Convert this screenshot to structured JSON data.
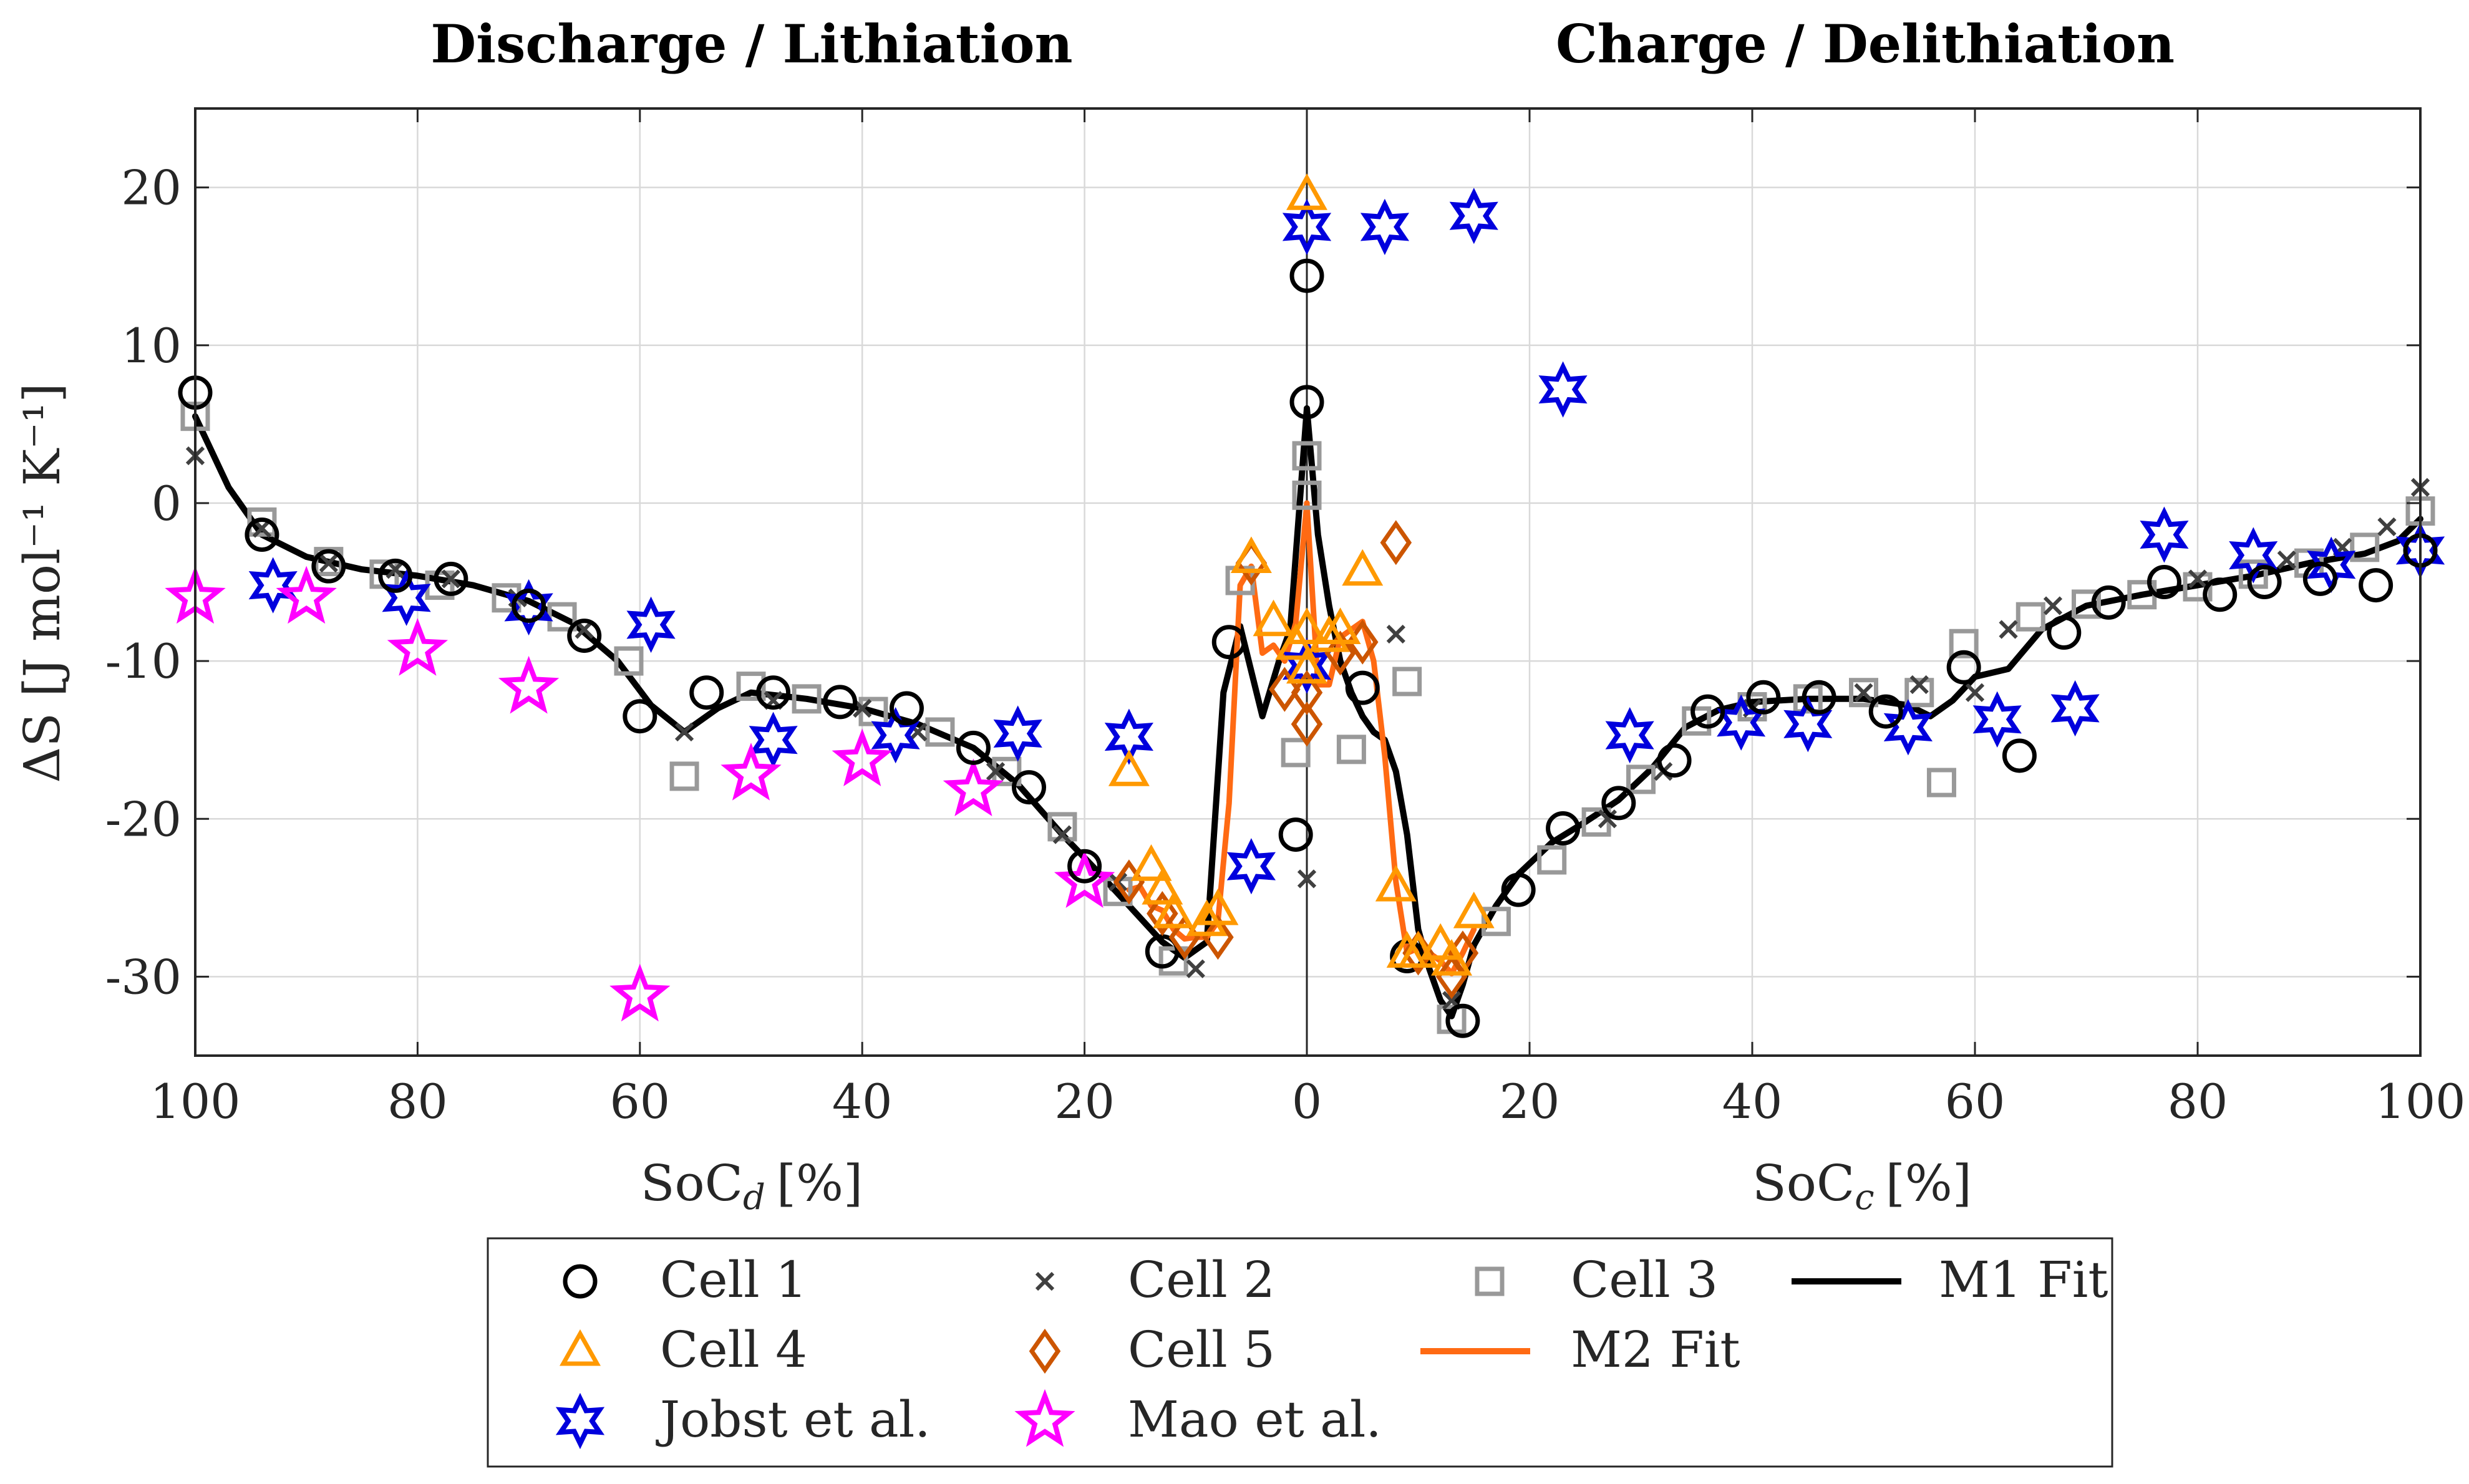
{
  "chart_data": {
    "type": "scatter",
    "titles": {
      "left": "Discharge / Lithiation",
      "right": "Charge / Delithiation"
    },
    "ylabel": "ΔS [J mol⁻¹ K⁻¹]",
    "xlabel_left": "SoC_d [%]",
    "xlabel_right": "SoC_c [%]",
    "xlabel_left_main": "SoC",
    "xlabel_left_sub": "d",
    "xlabel_right_main": "SoC",
    "xlabel_right_sub": "c",
    "xlabel_unit": "[%]",
    "ylim": [
      -35,
      25
    ],
    "yticks": [
      -30,
      -20,
      -10,
      0,
      10,
      20
    ],
    "ytick_labels": [
      "-30",
      "-20",
      "-10",
      "0",
      "10",
      "20"
    ],
    "xticks_left": [
      100,
      80,
      60,
      40,
      20,
      0
    ],
    "xtick_labels_left": [
      "100",
      "80",
      "60",
      "40",
      "20",
      "0"
    ],
    "xticks_right": [
      20,
      40,
      60,
      80,
      100
    ],
    "xtick_labels_right": [
      "20",
      "40",
      "60",
      "80",
      "100"
    ],
    "grid": true,
    "legend_position": "bottom",
    "colors": {
      "cell1": "#000000",
      "cell2": "#404040",
      "cell3": "#999999",
      "cell4": "#ff9900",
      "cell5": "#cc5500",
      "jobst": "#0000dd",
      "mao": "#ff00ff",
      "m1": "#000000",
      "m2": "#ff6a13"
    },
    "series": [
      {
        "id": "cell1",
        "name": "Cell 1",
        "marker": "circle",
        "discharge": [
          [
            100,
            7
          ],
          [
            94,
            -2
          ],
          [
            88,
            -4
          ],
          [
            82,
            -4.6
          ],
          [
            77,
            -4.8
          ],
          [
            70,
            -6.5
          ],
          [
            65,
            -8.4
          ],
          [
            60,
            -13.5
          ],
          [
            54,
            -12
          ],
          [
            48,
            -12
          ],
          [
            42,
            -12.6
          ],
          [
            36,
            -13
          ],
          [
            30,
            -15.5
          ],
          [
            25,
            -18
          ],
          [
            20,
            -23
          ],
          [
            13,
            -28.4
          ],
          [
            7,
            -8.8
          ],
          [
            1,
            -21
          ],
          [
            0,
            14.4
          ],
          [
            0,
            6.4
          ]
        ],
        "charge": [
          [
            5,
            -11.7
          ],
          [
            9,
            -28.7
          ],
          [
            14,
            -32.8
          ],
          [
            19,
            -24.5
          ],
          [
            23,
            -20.6
          ],
          [
            28,
            -19
          ],
          [
            33,
            -16.3
          ],
          [
            36,
            -13.2
          ],
          [
            41,
            -12.3
          ],
          [
            46,
            -12.3
          ],
          [
            52,
            -13.2
          ],
          [
            59,
            -10.4
          ],
          [
            64,
            -16
          ],
          [
            68,
            -8.2
          ],
          [
            72,
            -6.3
          ],
          [
            77,
            -5
          ],
          [
            82,
            -5.8
          ],
          [
            86,
            -5
          ],
          [
            91,
            -4.8
          ],
          [
            96,
            -5.2
          ],
          [
            100,
            -3
          ]
        ]
      },
      {
        "id": "cell2",
        "name": "Cell 2",
        "marker": "x",
        "discharge": [
          [
            100,
            3
          ],
          [
            94,
            -1.6
          ],
          [
            88,
            -3.8
          ],
          [
            82,
            -4.2
          ],
          [
            77,
            -4.8
          ],
          [
            71,
            -6
          ],
          [
            65,
            -8
          ],
          [
            56,
            -14.5
          ],
          [
            48,
            -12.5
          ],
          [
            40,
            -13
          ],
          [
            35,
            -14.5
          ],
          [
            28,
            -17
          ],
          [
            22,
            -21
          ],
          [
            17,
            -24
          ],
          [
            10,
            -29.5
          ],
          [
            0,
            -23.8
          ]
        ],
        "charge": [
          [
            8,
            -8.3
          ],
          [
            13,
            -31.5
          ],
          [
            27,
            -20
          ],
          [
            32,
            -17
          ],
          [
            40,
            -13
          ],
          [
            50,
            -12
          ],
          [
            55,
            -11.5
          ],
          [
            60,
            -12
          ],
          [
            63,
            -8
          ],
          [
            67,
            -6.5
          ],
          [
            80,
            -4.8
          ],
          [
            88,
            -3.6
          ],
          [
            93,
            -2.8
          ],
          [
            97,
            -1.5
          ],
          [
            100,
            1
          ]
        ]
      },
      {
        "id": "cell3",
        "name": "Cell 3",
        "marker": "square",
        "discharge": [
          [
            100,
            5.5
          ],
          [
            94,
            -1.2
          ],
          [
            88,
            -3.7
          ],
          [
            83,
            -4.5
          ],
          [
            78,
            -5.2
          ],
          [
            72,
            -6
          ],
          [
            67,
            -7.2
          ],
          [
            61,
            -10
          ],
          [
            56,
            -17.3
          ],
          [
            50,
            -11.6
          ],
          [
            45,
            -12.4
          ],
          [
            39,
            -13.2
          ],
          [
            33,
            -14.5
          ],
          [
            27,
            -17
          ],
          [
            22,
            -20.5
          ],
          [
            17,
            -24.6
          ],
          [
            12,
            -29
          ],
          [
            6,
            -4.9
          ],
          [
            0,
            3
          ],
          [
            0,
            0.5
          ],
          [
            1,
            -15.8
          ]
        ],
        "charge": [
          [
            4,
            -15.6
          ],
          [
            9,
            -11.3
          ],
          [
            13,
            -32.7
          ],
          [
            17,
            -26.5
          ],
          [
            22,
            -22.6
          ],
          [
            26,
            -20.2
          ],
          [
            30,
            -17.5
          ],
          [
            35,
            -13.8
          ],
          [
            40,
            -12.9
          ],
          [
            45,
            -12.4
          ],
          [
            50,
            -12
          ],
          [
            55,
            -12
          ],
          [
            57,
            -17.7
          ],
          [
            59,
            -8.9
          ],
          [
            65,
            -7.2
          ],
          [
            70,
            -6.4
          ],
          [
            75,
            -5.8
          ],
          [
            80,
            -5.3
          ],
          [
            85,
            -4.5
          ],
          [
            90,
            -3.8
          ],
          [
            95,
            -2.8
          ],
          [
            100,
            -0.5
          ]
        ]
      },
      {
        "id": "cell4",
        "name": "Cell 4",
        "marker": "triangle",
        "discharge": [
          [
            16,
            -17
          ],
          [
            14,
            -23
          ],
          [
            13,
            -24.5
          ],
          [
            12,
            -26
          ],
          [
            9,
            -26.5
          ],
          [
            8,
            -25.8
          ],
          [
            5,
            -3.5
          ],
          [
            3,
            -7.5
          ],
          [
            1,
            -9
          ],
          [
            0,
            19.5
          ],
          [
            0,
            -10.5
          ],
          [
            0,
            -8
          ]
        ],
        "charge": [
          [
            2,
            -8.5
          ],
          [
            3,
            -8
          ],
          [
            5,
            -4.3
          ],
          [
            8,
            -24.3
          ],
          [
            9,
            -28.5
          ],
          [
            10,
            -28.5
          ],
          [
            12,
            -28
          ],
          [
            13,
            -29
          ],
          [
            15,
            -26
          ]
        ]
      },
      {
        "id": "cell5",
        "name": "Cell 5",
        "marker": "diamond",
        "discharge": [
          [
            16,
            -24
          ],
          [
            13,
            -26
          ],
          [
            11,
            -27.5
          ],
          [
            8,
            -27.5
          ],
          [
            5,
            -3.8
          ],
          [
            2,
            -11.8
          ],
          [
            0,
            -14
          ],
          [
            0,
            -12
          ]
        ],
        "charge": [
          [
            3,
            -9.5
          ],
          [
            5,
            -8.8
          ],
          [
            8,
            -2.5
          ],
          [
            10,
            -28.5
          ],
          [
            13,
            -30
          ],
          [
            14,
            -28.5
          ]
        ]
      },
      {
        "id": "jobst",
        "name": "Jobst et al.",
        "marker": "hexagram",
        "discharge": [
          [
            93,
            -5.2
          ],
          [
            81,
            -6
          ],
          [
            70,
            -6.6
          ],
          [
            59,
            -7.7
          ],
          [
            48,
            -15
          ],
          [
            37,
            -14.7
          ],
          [
            26,
            -14.6
          ],
          [
            16,
            -14.8
          ],
          [
            5,
            -23
          ],
          [
            0,
            17.5
          ],
          [
            0,
            -10.3
          ]
        ],
        "charge": [
          [
            7,
            17.5
          ],
          [
            15,
            18.2
          ],
          [
            23,
            7.2
          ],
          [
            29,
            -14.7
          ],
          [
            39,
            -13.9
          ],
          [
            45,
            -14
          ],
          [
            54,
            -14.2
          ],
          [
            62,
            -13.7
          ],
          [
            69,
            -13
          ],
          [
            77,
            -2
          ],
          [
            85,
            -3.3
          ],
          [
            92,
            -3.9
          ],
          [
            100,
            -3
          ]
        ]
      },
      {
        "id": "mao",
        "name": "Mao et al.",
        "marker": "pentagram",
        "discharge": [
          [
            100,
            -6
          ],
          [
            90,
            -6
          ],
          [
            80,
            -9.3
          ],
          [
            70,
            -11.7
          ],
          [
            60,
            -31.2
          ],
          [
            50,
            -17.2
          ],
          [
            40,
            -16.3
          ],
          [
            30,
            -18.2
          ],
          [
            20,
            -24
          ]
        ],
        "charge": []
      },
      {
        "id": "m1",
        "name": "M1 Fit",
        "marker": "line",
        "discharge": [
          [
            100,
            5.5
          ],
          [
            97,
            1
          ],
          [
            94,
            -2
          ],
          [
            90,
            -3.4
          ],
          [
            85,
            -4.2
          ],
          [
            80,
            -4.6
          ],
          [
            75,
            -5.2
          ],
          [
            70,
            -6.2
          ],
          [
            66,
            -7.6
          ],
          [
            62,
            -10
          ],
          [
            59,
            -12.8
          ],
          [
            56,
            -14.5
          ],
          [
            53,
            -13
          ],
          [
            50,
            -12
          ],
          [
            45,
            -12.4
          ],
          [
            40,
            -13
          ],
          [
            35,
            -14
          ],
          [
            30,
            -15.5
          ],
          [
            26,
            -17.8
          ],
          [
            22,
            -21
          ],
          [
            19,
            -23.2
          ],
          [
            16,
            -25.5
          ],
          [
            13,
            -27.8
          ],
          [
            11,
            -28.8
          ],
          [
            9,
            -27.8
          ],
          [
            7.5,
            -12
          ],
          [
            6,
            -7.8
          ],
          [
            4,
            -13.5
          ],
          [
            2.5,
            -10
          ],
          [
            1.5,
            -8
          ],
          [
            0,
            6
          ]
        ],
        "charge": [
          [
            0,
            6
          ],
          [
            1,
            -2
          ],
          [
            2,
            -6.5
          ],
          [
            3,
            -10
          ],
          [
            4,
            -12
          ],
          [
            5,
            -13.5
          ],
          [
            6,
            -14.5
          ],
          [
            7,
            -15
          ],
          [
            8,
            -17
          ],
          [
            9,
            -21
          ],
          [
            10,
            -27
          ],
          [
            11,
            -29.5
          ],
          [
            12,
            -31.5
          ],
          [
            13,
            -32.5
          ],
          [
            14,
            -30.5
          ],
          [
            15,
            -28
          ],
          [
            17,
            -25.5
          ],
          [
            19,
            -23.5
          ],
          [
            22,
            -21.5
          ],
          [
            25,
            -20.2
          ],
          [
            28,
            -18.8
          ],
          [
            31,
            -16.8
          ],
          [
            34,
            -14.2
          ],
          [
            37,
            -13.1
          ],
          [
            40,
            -12.6
          ],
          [
            45,
            -12.4
          ],
          [
            50,
            -12.4
          ],
          [
            54,
            -12.8
          ],
          [
            56,
            -13.5
          ],
          [
            58,
            -12.5
          ],
          [
            60,
            -11
          ],
          [
            63,
            -10.5
          ],
          [
            66,
            -8
          ],
          [
            70,
            -6.5
          ],
          [
            75,
            -5.8
          ],
          [
            80,
            -5.2
          ],
          [
            85,
            -4.6
          ],
          [
            90,
            -3.8
          ],
          [
            95,
            -3.2
          ],
          [
            98,
            -2.4
          ],
          [
            100,
            -1
          ]
        ]
      },
      {
        "id": "m2",
        "name": "M2 Fit",
        "marker": "line",
        "discharge": [
          [
            16,
            -24.5
          ],
          [
            15,
            -24.3
          ],
          [
            14,
            -25.5
          ],
          [
            13,
            -25.8
          ],
          [
            12,
            -27
          ],
          [
            11,
            -27.6
          ],
          [
            10,
            -27.5
          ],
          [
            9,
            -27.5
          ],
          [
            8,
            -26.5
          ],
          [
            7,
            -19
          ],
          [
            6,
            -5.2
          ],
          [
            5,
            -4
          ],
          [
            4,
            -9.5
          ],
          [
            3,
            -9
          ],
          [
            2,
            -10
          ],
          [
            1,
            -7.6
          ],
          [
            0,
            0
          ]
        ],
        "charge": [
          [
            0,
            0
          ],
          [
            1,
            -11.5
          ],
          [
            2,
            -11.5
          ],
          [
            3,
            -8.5
          ],
          [
            4,
            -8
          ],
          [
            5,
            -7.5
          ],
          [
            6,
            -10
          ],
          [
            7,
            -16
          ],
          [
            8,
            -24
          ],
          [
            9,
            -28.5
          ],
          [
            10,
            -28.2
          ],
          [
            11,
            -28.5
          ],
          [
            12,
            -29
          ],
          [
            13,
            -29.8
          ],
          [
            14,
            -28.5
          ],
          [
            15,
            -27
          ]
        ]
      }
    ]
  }
}
